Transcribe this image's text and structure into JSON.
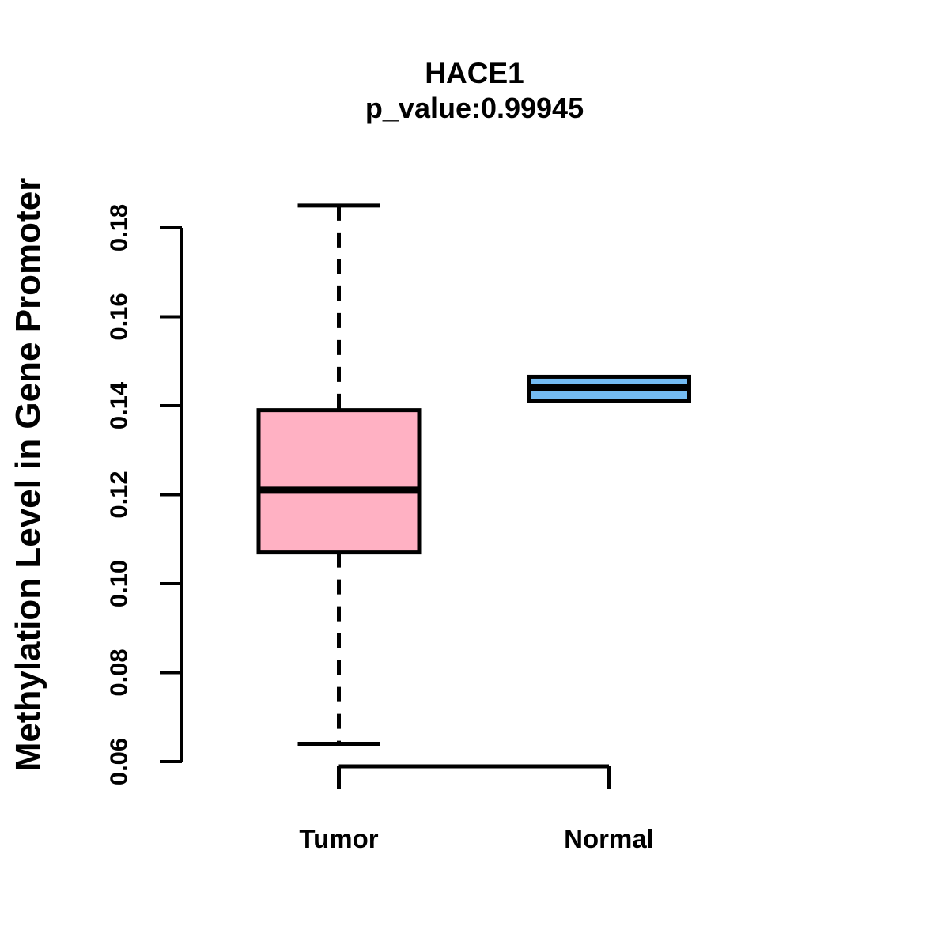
{
  "chart_data": {
    "type": "boxplot",
    "title": "HACE1",
    "subtitle": "p_value:0.99945",
    "xlabel": "",
    "ylabel": "Methylation Level in Gene Promoter",
    "categories": [
      "Tumor",
      "Normal"
    ],
    "y_ticks": [
      0.06,
      0.08,
      0.1,
      0.12,
      0.14,
      0.16,
      0.18
    ],
    "y_tick_labels": [
      "0.06",
      "0.08",
      "0.10",
      "0.12",
      "0.14",
      "0.16",
      "0.18"
    ],
    "ylim": [
      0.055,
      0.19
    ],
    "grid": false,
    "legend": "none",
    "series": [
      {
        "name": "Tumor",
        "fill_color": "#FFB1C3",
        "stats": {
          "lower_whisker": 0.064,
          "q1": 0.107,
          "median": 0.121,
          "q3": 0.139,
          "upper_whisker": 0.185
        }
      },
      {
        "name": "Normal",
        "fill_color": "#74BBF2",
        "stats": {
          "lower_whisker": 0.141,
          "q1": 0.141,
          "median": 0.144,
          "q3": 0.1465,
          "upper_whisker": 0.1465
        }
      }
    ],
    "line_color": "#000000"
  }
}
